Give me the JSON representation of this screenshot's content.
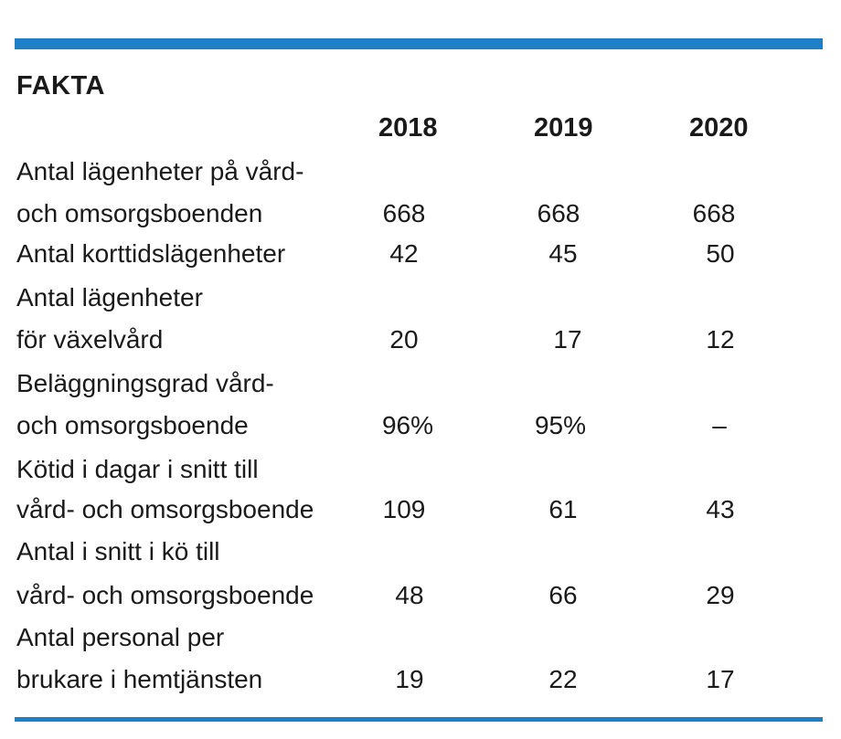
{
  "heading": "FAKTA",
  "years": [
    "2018",
    "2019",
    "2020"
  ],
  "rows": [
    {
      "label_lines": [
        "Antal lägenheter på vård-",
        "och omsorgsboenden"
      ],
      "values": [
        "668",
        "668",
        "668"
      ]
    },
    {
      "label_lines": [
        "Antal korttidslägenheter"
      ],
      "values": [
        "42",
        "45",
        "50"
      ]
    },
    {
      "label_lines": [
        "Antal lägenheter",
        "för växelvård"
      ],
      "values": [
        "20",
        "17",
        "12"
      ]
    },
    {
      "label_lines": [
        "Beläggningsgrad vård-",
        "och omsorgsboende"
      ],
      "values": [
        "96%",
        "95%",
        "–"
      ]
    },
    {
      "label_lines": [
        "Kötid i dagar i snitt till",
        "vård- och omsorgsboende"
      ],
      "values": [
        "109",
        "61",
        "43"
      ]
    },
    {
      "label_lines": [
        "Antal i snitt i kö till",
        "vård- och omsorgsboende"
      ],
      "values": [
        "48",
        "66",
        "29"
      ]
    },
    {
      "label_lines": [
        "Antal personal per",
        "brukare i hemtjänsten"
      ],
      "values": [
        "19",
        "22",
        "17"
      ]
    }
  ],
  "colors": {
    "accent": "#1f7fc7",
    "text": "#1a1a1a"
  }
}
